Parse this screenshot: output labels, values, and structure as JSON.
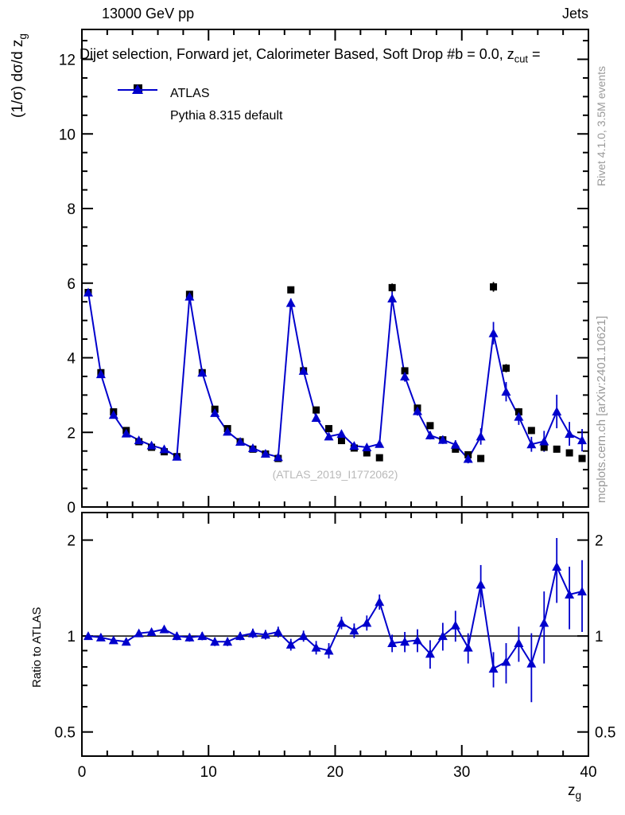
{
  "header": {
    "left": "13000 GeV pp",
    "right": "Jets"
  },
  "title": {
    "text": "Dijet selection, Forward jet, Calorimeter Based, Soft Drop #b = 0.0, z",
    "sub": "cut",
    "tail": " ="
  },
  "labels": {
    "y_main": "(1/σ) dσ/d z",
    "y_main_sub": "g",
    "y_ratio": "Ratio to ATLAS",
    "x": "z",
    "x_sub": "g",
    "watermark": "(ATLAS_2019_I1772062)",
    "side_top": "Rivet 4.1.0,  3.5M events",
    "side_bottom": "mcplots.cern.ch [arXiv:2401.10621]"
  },
  "legend": [
    {
      "label": "ATLAS",
      "marker": "filled-square",
      "color": "#000000"
    },
    {
      "label": "Pythia 8.315 default",
      "marker": "filled-triangle-line",
      "color": "#0000cc"
    }
  ],
  "chart_data": {
    "type": "line",
    "title": "Dijet selection, Forward jet, Calorimeter Based, Soft Drop #b = 0.0, z_cut =",
    "xlabel": "z_g",
    "ylabel": "(1/σ) dσ/d z_g",
    "ratio_ylabel": "Ratio to ATLAS",
    "x": [
      0.5,
      1.5,
      2.5,
      3.5,
      4.5,
      5.5,
      6.5,
      7.5,
      8.5,
      9.5,
      10.5,
      11.5,
      12.5,
      13.5,
      14.5,
      15.5,
      16.5,
      17.5,
      18.5,
      19.5,
      20.5,
      21.5,
      22.5,
      23.5,
      24.5,
      25.5,
      26.5,
      27.5,
      28.5,
      29.5,
      30.5,
      31.5,
      32.5,
      33.5,
      34.5,
      35.5,
      36.5,
      37.5,
      38.5,
      39.5
    ],
    "series": [
      {
        "name": "ATLAS",
        "marker": "square",
        "color": "#000000",
        "line": false,
        "values": [
          5.75,
          3.6,
          2.55,
          2.05,
          1.75,
          1.6,
          1.48,
          1.35,
          5.7,
          3.6,
          2.62,
          2.1,
          1.75,
          1.55,
          1.42,
          1.3,
          5.82,
          3.65,
          2.6,
          2.1,
          1.78,
          1.58,
          1.45,
          1.32,
          5.88,
          3.65,
          2.65,
          2.18,
          1.8,
          1.55,
          1.4,
          1.3,
          5.9,
          3.72,
          2.55,
          2.05,
          1.6,
          1.55,
          1.45,
          1.3
        ],
        "errors": [
          0.06,
          0.05,
          0.04,
          0.04,
          0.03,
          0.03,
          0.03,
          0.03,
          0.07,
          0.06,
          0.05,
          0.04,
          0.04,
          0.04,
          0.04,
          0.04,
          0.09,
          0.07,
          0.06,
          0.05,
          0.05,
          0.05,
          0.05,
          0.05,
          0.11,
          0.09,
          0.08,
          0.07,
          0.07,
          0.07,
          0.07,
          0.07,
          0.13,
          0.11,
          0.1,
          0.09,
          0.09,
          0.09,
          0.09,
          0.09
        ]
      },
      {
        "name": "Pythia 8.315 default",
        "marker": "triangle",
        "color": "#0000cc",
        "line": true,
        "values": [
          5.75,
          3.56,
          2.47,
          1.97,
          1.79,
          1.65,
          1.55,
          1.35,
          5.64,
          3.6,
          2.52,
          2.02,
          1.75,
          1.58,
          1.43,
          1.34,
          5.47,
          3.65,
          2.39,
          1.89,
          1.96,
          1.64,
          1.6,
          1.69,
          5.59,
          3.5,
          2.57,
          1.92,
          1.8,
          1.67,
          1.29,
          1.89,
          4.66,
          3.09,
          2.42,
          1.68,
          1.76,
          2.56,
          1.96,
          1.79
        ],
        "errors": [
          0.06,
          0.05,
          0.04,
          0.04,
          0.04,
          0.04,
          0.04,
          0.04,
          0.08,
          0.07,
          0.06,
          0.05,
          0.05,
          0.05,
          0.05,
          0.05,
          0.12,
          0.1,
          0.09,
          0.08,
          0.08,
          0.08,
          0.08,
          0.09,
          0.18,
          0.14,
          0.12,
          0.11,
          0.11,
          0.12,
          0.12,
          0.22,
          0.3,
          0.26,
          0.22,
          0.2,
          0.28,
          0.45,
          0.32,
          0.3
        ]
      }
    ],
    "ratio": {
      "name": "Pythia 8.315 default / ATLAS",
      "color": "#0000cc",
      "ref": 1,
      "values": [
        1.0,
        0.99,
        0.97,
        0.96,
        1.02,
        1.03,
        1.05,
        1.0,
        0.99,
        1.0,
        0.96,
        0.96,
        1.0,
        1.02,
        1.01,
        1.03,
        0.94,
        1.0,
        0.92,
        0.9,
        1.1,
        1.04,
        1.1,
        1.28,
        0.95,
        0.96,
        0.97,
        0.88,
        1.0,
        1.08,
        0.92,
        1.45,
        0.79,
        0.83,
        0.95,
        0.82,
        1.1,
        1.65,
        1.35,
        1.38
      ],
      "errors": [
        0.025,
        0.02,
        0.02,
        0.02,
        0.02,
        0.025,
        0.025,
        0.03,
        0.03,
        0.03,
        0.03,
        0.03,
        0.03,
        0.035,
        0.035,
        0.04,
        0.04,
        0.04,
        0.045,
        0.05,
        0.05,
        0.055,
        0.06,
        0.07,
        0.06,
        0.07,
        0.08,
        0.09,
        0.1,
        0.12,
        0.1,
        0.22,
        0.1,
        0.12,
        0.12,
        0.2,
        0.28,
        0.38,
        0.3,
        0.35
      ]
    },
    "x_axis": {
      "lim": [
        0,
        40
      ],
      "ticks": [
        0,
        10,
        20,
        30,
        40
      ],
      "minor_step": 2
    },
    "main_axis": {
      "lim": [
        0,
        12.8
      ],
      "ticks": [
        0,
        2,
        4,
        6,
        8,
        10,
        12
      ],
      "minor_step": 0.5
    },
    "ratio_axis": {
      "scale": "log",
      "lim": [
        0.42,
        2.44
      ],
      "ticks": [
        0.5,
        1,
        2
      ],
      "tick_labels": [
        "0.5",
        "1",
        "2"
      ],
      "minors": [
        0.6,
        0.7,
        0.8,
        0.9
      ]
    },
    "grid": false,
    "legend_position": "top-left"
  }
}
